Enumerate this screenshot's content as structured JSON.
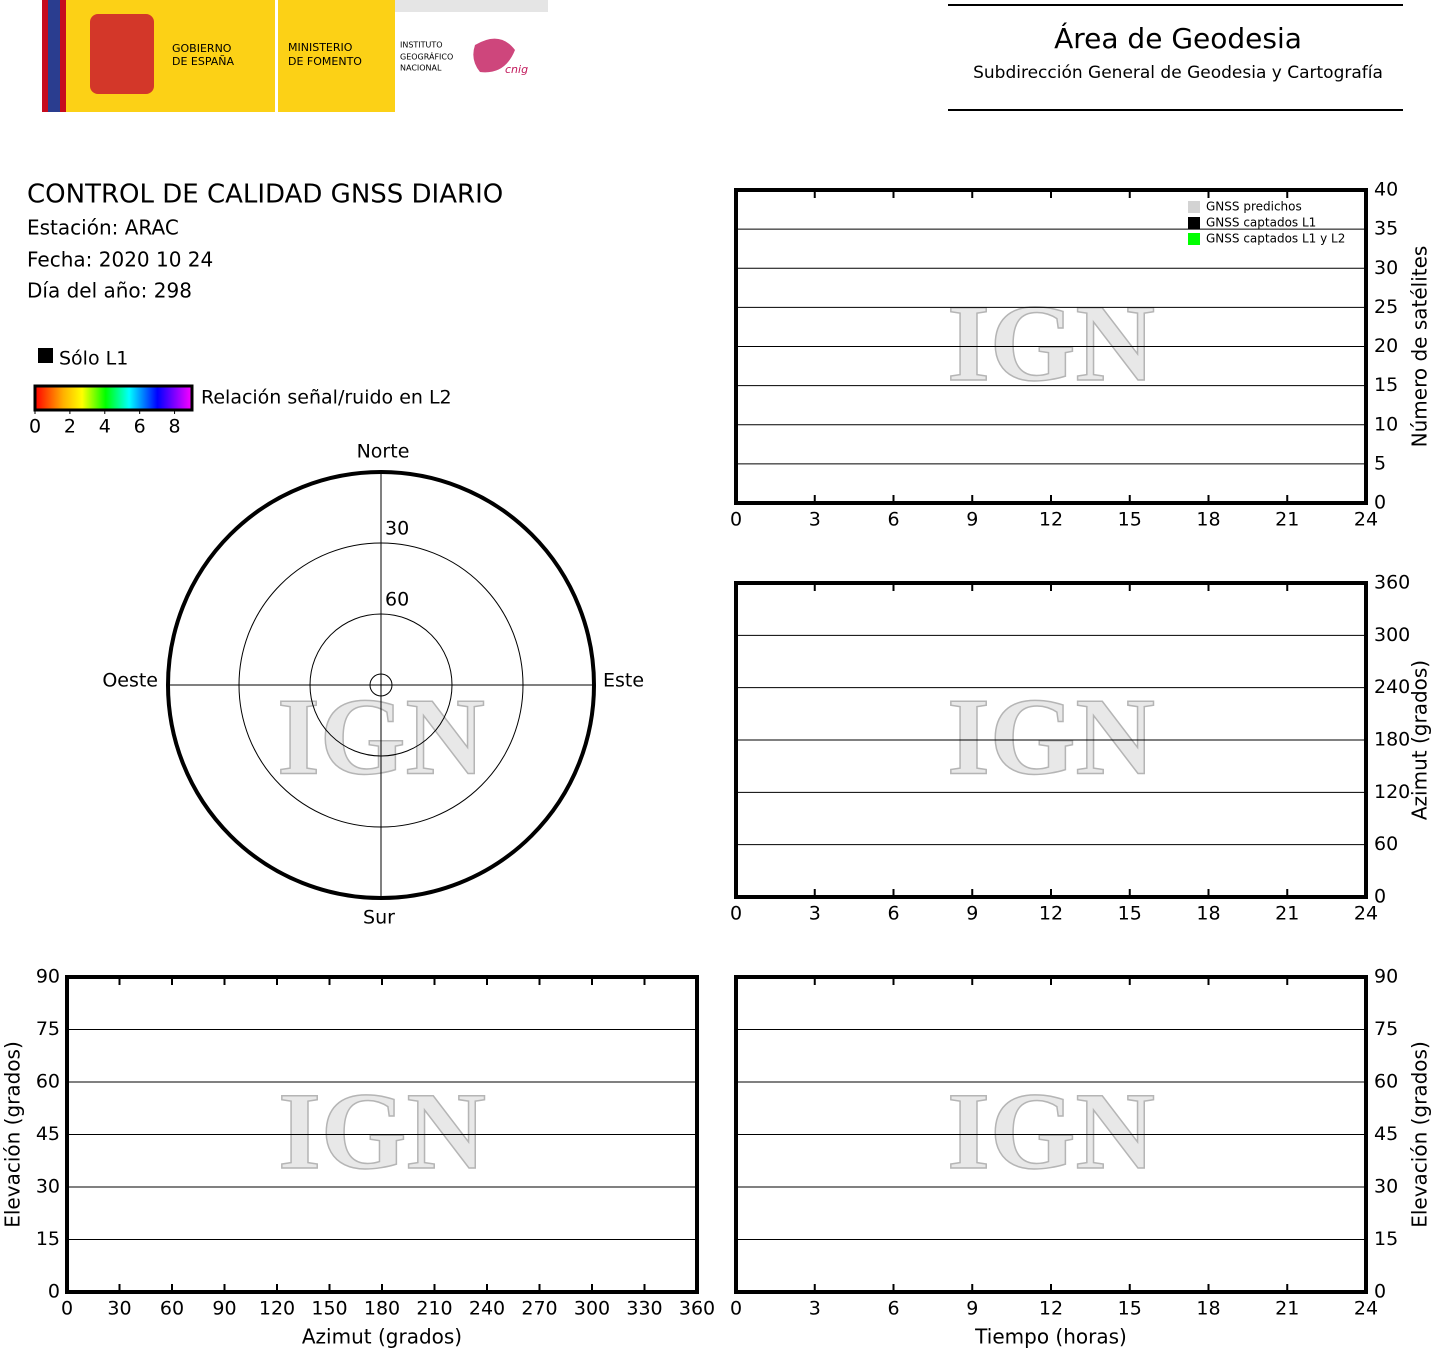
{
  "header": {
    "gobierno": [
      "GOBIERNO",
      "DE ESPAÑA"
    ],
    "ministerio": [
      "MINISTERIO",
      "DE FOMENTO"
    ],
    "instituto": [
      "INSTITUTO",
      "GEOGRÁFICO",
      "NACIONAL"
    ],
    "cnig": "cnig",
    "area": "Área de Geodesia",
    "subdireccion": "Subdirección General de Geodesia y Cartografía"
  },
  "report": {
    "title": "CONTROL DE CALIDAD GNSS DIARIO",
    "station": "Estación: ARAC",
    "date": "Fecha: 2020 10 24",
    "doy": "Día del año: 298"
  },
  "watermark": "IGN",
  "chart_data": [
    {
      "type": "polar",
      "directions": {
        "north": "Norte",
        "south": "Sur",
        "east": "Este",
        "west": "Oeste"
      },
      "rlim": [
        0,
        90
      ],
      "rticks": [
        30,
        60
      ],
      "legend_series": {
        "name": "Sólo L1",
        "color": "#000000"
      },
      "colorbar": {
        "label": "Relación señal/ruido en L2",
        "lim": [
          0,
          9
        ],
        "ticks": [
          0,
          2,
          4,
          6,
          8
        ]
      }
    },
    {
      "type": "scatter",
      "xlim": [
        0,
        24
      ],
      "xticks": [
        0,
        3,
        6,
        9,
        12,
        15,
        18,
        21,
        24
      ],
      "ylim": [
        0,
        40
      ],
      "yticks": [
        0,
        5,
        10,
        15,
        20,
        25,
        30,
        35,
        40
      ],
      "ylabel": "Número de satélites",
      "yaxis_side": "right",
      "grid": true,
      "legend": "upper right",
      "series": [
        {
          "name": "GNSS predichos",
          "color": "#d3d3d3",
          "values": []
        },
        {
          "name": "GNSS captados L1",
          "color": "#000000",
          "values": []
        },
        {
          "name": "GNSS captados L1 y L2",
          "color": "#00ff00",
          "values": []
        }
      ]
    },
    {
      "type": "scatter",
      "xlim": [
        0,
        24
      ],
      "xticks": [
        0,
        3,
        6,
        9,
        12,
        15,
        18,
        21,
        24
      ],
      "ylim": [
        0,
        360
      ],
      "yticks": [
        0,
        60,
        120,
        180,
        240,
        300,
        360
      ],
      "ylabel": "Azimut (grados)",
      "yaxis_side": "right",
      "grid": true
    },
    {
      "type": "scatter",
      "xlim": [
        0,
        360
      ],
      "xticks": [
        0,
        30,
        60,
        90,
        120,
        150,
        180,
        210,
        240,
        270,
        300,
        330,
        360
      ],
      "ylim": [
        0,
        90
      ],
      "yticks": [
        0,
        15,
        30,
        45,
        60,
        75,
        90
      ],
      "xlabel": "Azimut (grados)",
      "ylabel": "Elevación (grados)",
      "yaxis_side": "left",
      "grid": true
    },
    {
      "type": "scatter",
      "xlim": [
        0,
        24
      ],
      "xticks": [
        0,
        3,
        6,
        9,
        12,
        15,
        18,
        21,
        24
      ],
      "ylim": [
        0,
        90
      ],
      "yticks": [
        0,
        15,
        30,
        45,
        60,
        75,
        90
      ],
      "xlabel": "Tiempo (horas)",
      "ylabel": "Elevación (grados)",
      "yaxis_side": "right",
      "grid": true
    }
  ]
}
